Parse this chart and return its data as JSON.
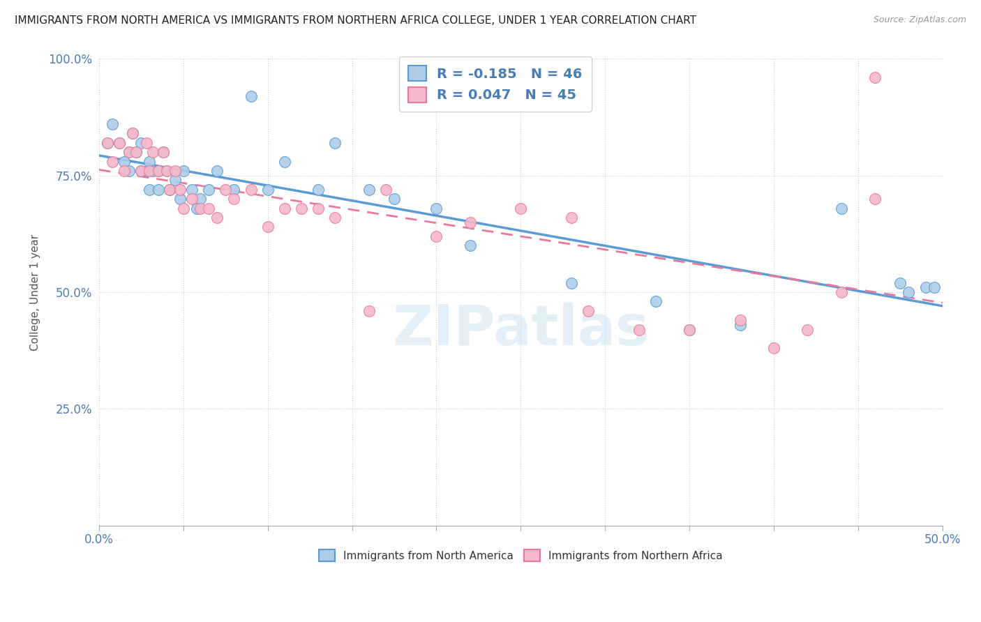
{
  "title": "IMMIGRANTS FROM NORTH AMERICA VS IMMIGRANTS FROM NORTHERN AFRICA COLLEGE, UNDER 1 YEAR CORRELATION CHART",
  "source": "Source: ZipAtlas.com",
  "ylabel": "College, Under 1 year",
  "xlim": [
    0.0,
    0.5
  ],
  "ylim": [
    0.0,
    1.0
  ],
  "xtick_positions": [
    0.0,
    0.05,
    0.1,
    0.15,
    0.2,
    0.25,
    0.3,
    0.35,
    0.4,
    0.45,
    0.5
  ],
  "xticklabels": [
    "0.0%",
    "",
    "",
    "",
    "",
    "",
    "",
    "",
    "",
    "",
    "50.0%"
  ],
  "ytick_positions": [
    0.0,
    0.25,
    0.5,
    0.75,
    1.0
  ],
  "yticklabels": [
    "",
    "25.0%",
    "50.0%",
    "75.0%",
    "100.0%"
  ],
  "blue_R": -0.185,
  "blue_N": 46,
  "pink_R": 0.047,
  "pink_N": 45,
  "blue_color": "#aecce8",
  "pink_color": "#f5b8ca",
  "blue_line_color": "#5b9bd5",
  "pink_line_color": "#e8799a",
  "watermark": "ZIPatlas",
  "blue_points_x": [
    0.005,
    0.008,
    0.012,
    0.015,
    0.018,
    0.018,
    0.02,
    0.022,
    0.025,
    0.025,
    0.028,
    0.03,
    0.03,
    0.032,
    0.035,
    0.035,
    0.038,
    0.04,
    0.042,
    0.045,
    0.048,
    0.05,
    0.055,
    0.058,
    0.06,
    0.065,
    0.07,
    0.08,
    0.09,
    0.1,
    0.11,
    0.13,
    0.14,
    0.16,
    0.175,
    0.2,
    0.22,
    0.28,
    0.33,
    0.35,
    0.38,
    0.44,
    0.475,
    0.48,
    0.49,
    0.495
  ],
  "blue_points_y": [
    0.82,
    0.86,
    0.82,
    0.78,
    0.76,
    0.8,
    0.84,
    0.8,
    0.76,
    0.82,
    0.76,
    0.72,
    0.78,
    0.76,
    0.76,
    0.72,
    0.8,
    0.76,
    0.72,
    0.74,
    0.7,
    0.76,
    0.72,
    0.68,
    0.7,
    0.72,
    0.76,
    0.72,
    0.92,
    0.72,
    0.78,
    0.72,
    0.82,
    0.72,
    0.7,
    0.68,
    0.6,
    0.52,
    0.48,
    0.42,
    0.43,
    0.68,
    0.52,
    0.5,
    0.51,
    0.51
  ],
  "pink_points_x": [
    0.005,
    0.008,
    0.012,
    0.015,
    0.018,
    0.02,
    0.022,
    0.025,
    0.028,
    0.03,
    0.032,
    0.035,
    0.038,
    0.04,
    0.042,
    0.045,
    0.048,
    0.05,
    0.055,
    0.06,
    0.065,
    0.07,
    0.075,
    0.08,
    0.09,
    0.1,
    0.11,
    0.12,
    0.13,
    0.14,
    0.16,
    0.17,
    0.2,
    0.22,
    0.25,
    0.28,
    0.29,
    0.32,
    0.35,
    0.38,
    0.4,
    0.42,
    0.44,
    0.46,
    0.46
  ],
  "pink_points_y": [
    0.82,
    0.78,
    0.82,
    0.76,
    0.8,
    0.84,
    0.8,
    0.76,
    0.82,
    0.76,
    0.8,
    0.76,
    0.8,
    0.76,
    0.72,
    0.76,
    0.72,
    0.68,
    0.7,
    0.68,
    0.68,
    0.66,
    0.72,
    0.7,
    0.72,
    0.64,
    0.68,
    0.68,
    0.68,
    0.66,
    0.46,
    0.72,
    0.62,
    0.65,
    0.68,
    0.66,
    0.46,
    0.42,
    0.42,
    0.44,
    0.38,
    0.42,
    0.5,
    0.96,
    0.7
  ]
}
